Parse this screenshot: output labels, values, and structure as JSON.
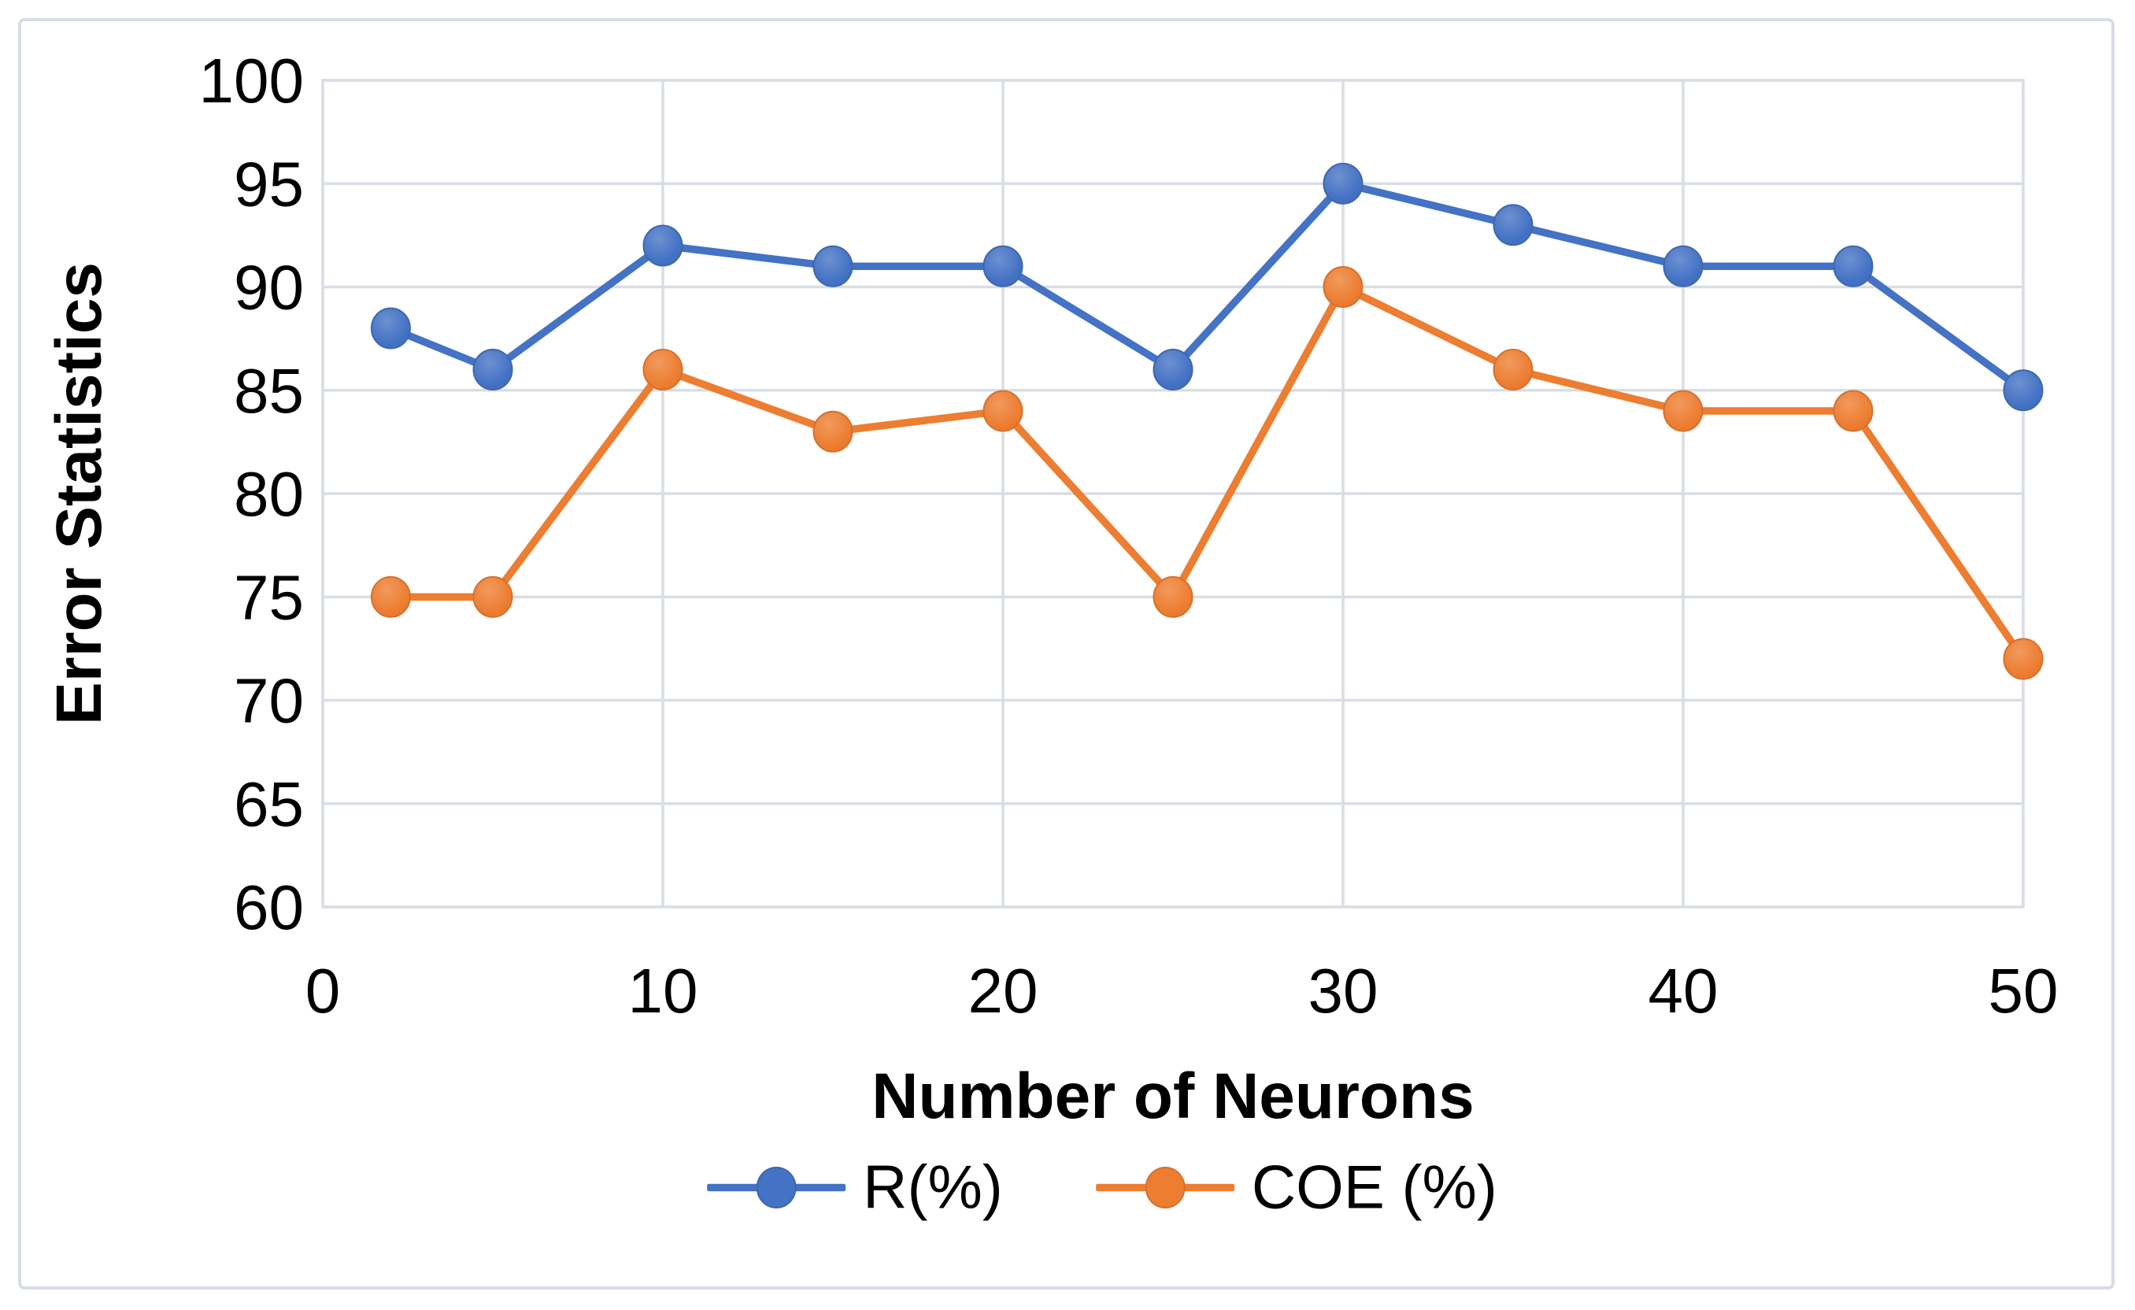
{
  "figure": {
    "background_color": "#ffffff",
    "frame_border_color": "#d7dde7"
  },
  "chart_data": {
    "type": "line",
    "x": [
      2,
      5,
      10,
      15,
      20,
      25,
      30,
      35,
      40,
      45,
      50
    ],
    "series": [
      {
        "name": "R(%)",
        "color": "#4472C4",
        "values": [
          88,
          86,
          92,
          91,
          91,
          86,
          95,
          93,
          91,
          91,
          85
        ]
      },
      {
        "name": "COE (%)",
        "color": "#ED7D31",
        "values": [
          75,
          75,
          86,
          83,
          84,
          75,
          90,
          86,
          84,
          84,
          72
        ]
      }
    ],
    "xlabel": "Number of Neurons",
    "ylabel": "Error Statistics",
    "xlim": [
      0,
      50
    ],
    "ylim": [
      60,
      100
    ],
    "xticks": [
      0,
      10,
      20,
      30,
      40,
      50
    ],
    "yticks": [
      100,
      95,
      90,
      85,
      80,
      75,
      70,
      65,
      60
    ],
    "grid": true,
    "gridline_color": "#d9dde4",
    "plot_border_color": "#d9dde4",
    "tick_text_color": "#000000",
    "legend_position": "bottom-center",
    "marker_style": "filled-circle"
  }
}
